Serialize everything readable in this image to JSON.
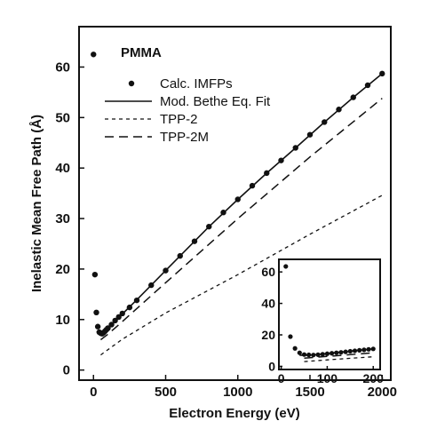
{
  "chart_data": [
    {
      "type": "scatter",
      "title": "PMMA",
      "xlabel": "Electron Energy (eV)",
      "ylabel": "Inelastic Mean Free Path (Å)",
      "xlim": [
        -100,
        2060
      ],
      "ylim": [
        -2,
        68
      ],
      "xticks": [
        0,
        500,
        1000,
        1500,
        2000
      ],
      "xtick_labels": [
        "0",
        "500",
        "1000",
        "1500",
        "2000"
      ],
      "yticks": [
        0,
        10,
        20,
        30,
        40,
        50,
        60
      ],
      "ytick_labels": [
        "0",
        "10",
        "20",
        "30",
        "40",
        "50",
        "60"
      ],
      "grid": false,
      "legend_position": "upper-left",
      "series": [
        {
          "name": "Calc. IMFPs",
          "style": "points",
          "x": [
            0,
            10,
            20,
            30,
            40,
            50,
            60,
            70,
            80,
            90,
            100,
            125,
            150,
            175,
            200,
            250,
            300,
            400,
            500,
            600,
            700,
            800,
            900,
            1000,
            1100,
            1200,
            1300,
            1400,
            1500,
            1600,
            1700,
            1800,
            1900,
            2000
          ],
          "y": [
            62.5,
            18.9,
            11.4,
            8.6,
            7.5,
            7.3,
            7.2,
            7.4,
            7.7,
            8.0,
            8.3,
            9.0,
            9.8,
            10.5,
            11.2,
            12.4,
            13.8,
            16.8,
            19.7,
            22.6,
            25.5,
            28.4,
            31.2,
            33.8,
            36.5,
            39.0,
            41.5,
            44.0,
            46.6,
            49.1,
            51.6,
            54.0,
            56.4,
            58.7
          ]
        },
        {
          "name": "Mod. Bethe Eq. Fit",
          "style": "solid",
          "x": [
            40,
            50,
            60,
            80,
            100,
            150,
            200,
            300,
            400,
            500,
            600,
            800,
            1000,
            1200,
            1400,
            1600,
            1800,
            2000
          ],
          "y": [
            7.1,
            7.0,
            7.1,
            7.6,
            8.2,
            9.7,
            11.1,
            13.9,
            16.8,
            19.7,
            22.6,
            28.4,
            33.8,
            39.0,
            44.0,
            49.1,
            54.0,
            58.7
          ]
        },
        {
          "name": "TPP-2",
          "style": "short-dash",
          "x": [
            50,
            200,
            500,
            1000,
            1500,
            2000
          ],
          "y": [
            3.0,
            6.1,
            11.3,
            18.9,
            26.9,
            34.6
          ]
        },
        {
          "name": "TPP-2M",
          "style": "long-dash",
          "x": [
            50,
            100,
            200,
            500,
            1000,
            1500,
            2000
          ],
          "y": [
            6.0,
            7.1,
            9.6,
            17.3,
            30.0,
            42.2,
            53.8
          ]
        }
      ]
    },
    {
      "type": "scatter",
      "xlim": [
        -5,
        215
      ],
      "ylim": [
        -2,
        68
      ],
      "xticks": [
        0,
        100,
        200
      ],
      "xtick_labels": [
        "0",
        "100",
        "200"
      ],
      "yticks": [
        0,
        20,
        40,
        60
      ],
      "ytick_labels": [
        "0",
        "20",
        "40",
        "60"
      ],
      "series": [
        {
          "style": "points",
          "x": [
            10,
            20,
            30,
            40,
            50,
            60,
            70,
            80,
            90,
            100,
            110,
            120,
            130,
            140,
            150,
            160,
            170,
            180,
            190,
            200
          ],
          "y": [
            63.5,
            18.9,
            11.4,
            8.6,
            7.5,
            7.3,
            7.2,
            7.4,
            7.7,
            8.0,
            8.3,
            8.6,
            8.9,
            9.2,
            9.6,
            9.9,
            10.2,
            10.5,
            10.8,
            11.1
          ]
        },
        {
          "style": "solid",
          "x": [
            40,
            50,
            60,
            80,
            100,
            150,
            200
          ],
          "y": [
            7.1,
            7.0,
            7.1,
            7.6,
            8.2,
            9.7,
            11.1
          ]
        },
        {
          "style": "short-dash",
          "x": [
            50,
            100,
            150,
            200
          ],
          "y": [
            3.0,
            4.1,
            5.1,
            6.1
          ]
        },
        {
          "style": "long-dash",
          "x": [
            50,
            100,
            150,
            200
          ],
          "y": [
            5.2,
            6.3,
            7.4,
            8.6
          ]
        }
      ]
    }
  ]
}
